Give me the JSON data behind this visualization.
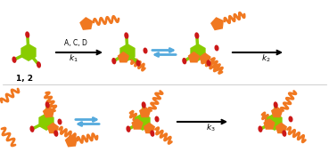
{
  "background_color": "#ffffff",
  "green_color": "#88cc00",
  "orange_color": "#f07820",
  "red_color": "#cc1818",
  "arrow_color": "#000000",
  "blue_arrow_color": "#55aadd",
  "text_color": "#000000",
  "label_12": "1, 2",
  "label_ACD": "A, C, D",
  "label_k1": "$k_1$",
  "label_k2": "$k_2$",
  "label_k3": "$k_3$"
}
